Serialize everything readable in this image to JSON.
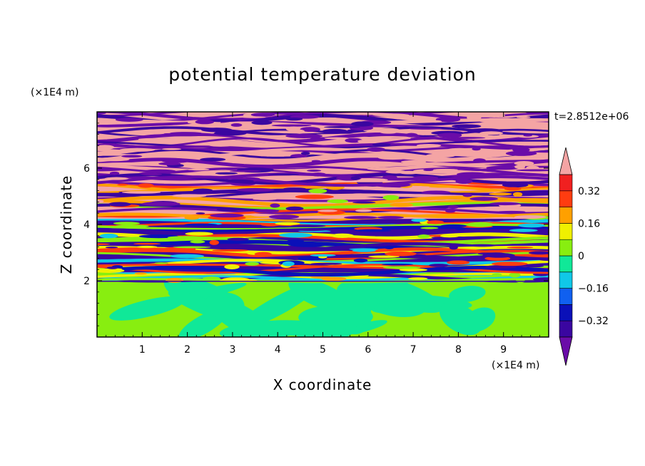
{
  "chart_data": {
    "type": "heatmap",
    "title": "potential temperature deviation",
    "xlabel": "X coordinate",
    "ylabel": "Z coordinate",
    "x_unit": "(×1E4 m)",
    "y_unit": "(×1E4 m)",
    "time_label": "t=2.8512e+06",
    "xlim": [
      0,
      10
    ],
    "ylim": [
      0,
      8
    ],
    "x_ticks": [
      1,
      2,
      3,
      4,
      5,
      6,
      7,
      8,
      9
    ],
    "y_ticks": [
      2,
      4,
      6
    ],
    "colorbar": {
      "levels": [
        -0.4,
        -0.32,
        -0.24,
        -0.16,
        -0.08,
        0,
        0.08,
        0.16,
        0.24,
        0.32,
        0.4
      ],
      "labeled_levels": [
        "0.32",
        "0.16",
        "0",
        "−0.16",
        "−0.32"
      ],
      "colors": [
        "#6a0ca8",
        "#3a06a0",
        "#0a10b8",
        "#1060f0",
        "#10c8e8",
        "#10e898",
        "#88ee10",
        "#f0f000",
        "#ffa000",
        "#ff3c10",
        "#f02020",
        "#f4a4a4"
      ],
      "extend": "both"
    },
    "bands": [
      {
        "z": [
          0,
          1.98
        ],
        "pattern": "eddies",
        "colors": [
          "#88ee10",
          "#10e898"
        ]
      },
      {
        "z": [
          1.98,
          2.3
        ],
        "pattern": "layers",
        "colors": [
          "#10c8e8",
          "#88ee10",
          "#f0f000",
          "#ffa000",
          "#3a06a0"
        ]
      },
      {
        "z": [
          2.3,
          4.2
        ],
        "pattern": "layers",
        "colors": [
          "#3a06a0",
          "#10c8e8",
          "#f0f000",
          "#ff3c10",
          "#88ee10",
          "#0a10b8"
        ]
      },
      {
        "z": [
          4.2,
          5.5
        ],
        "pattern": "layers",
        "colors": [
          "#f4a4a4",
          "#6a0ca8",
          "#ff3c10",
          "#ffa000",
          "#88ee10",
          "#3a06a0"
        ]
      },
      {
        "z": [
          5.5,
          8
        ],
        "pattern": "layers",
        "colors": [
          "#f4a4a4",
          "#6a0ca8",
          "#f4a4a4",
          "#6a0ca8",
          "#3a06a0"
        ]
      }
    ]
  }
}
